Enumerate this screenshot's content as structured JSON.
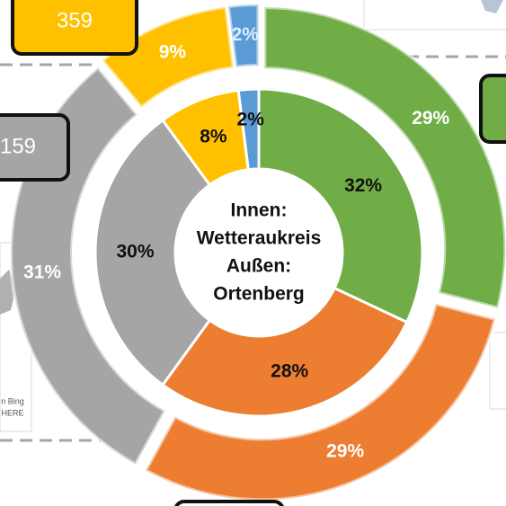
{
  "chart_data": {
    "type": "donut",
    "center_label": [
      "Innen:",
      "Wetteraukreis",
      "Außen:",
      "Ortenberg"
    ],
    "series": [
      {
        "ring": "inner",
        "values": [
          32,
          28,
          30,
          8,
          2
        ],
        "value_labels": [
          "32%",
          "28%",
          "30%",
          "8%",
          "2%"
        ],
        "colors": [
          "#70ad47",
          "#ed7d31",
          "#a5a5a5",
          "#ffc000",
          "#5b9bd5"
        ]
      },
      {
        "ring": "outer",
        "values": [
          29,
          29,
          31,
          9,
          2
        ],
        "value_labels": [
          "29%",
          "29%",
          "31%",
          "9%",
          "2%"
        ],
        "colors": [
          "#70ad47",
          "#ed7d31",
          "#a5a5a5",
          "#ffc000",
          "#5b9bd5"
        ]
      }
    ]
  },
  "callouts": [
    "359",
    "159"
  ],
  "map_attribution": [
    "n Bing",
    "HERE"
  ]
}
